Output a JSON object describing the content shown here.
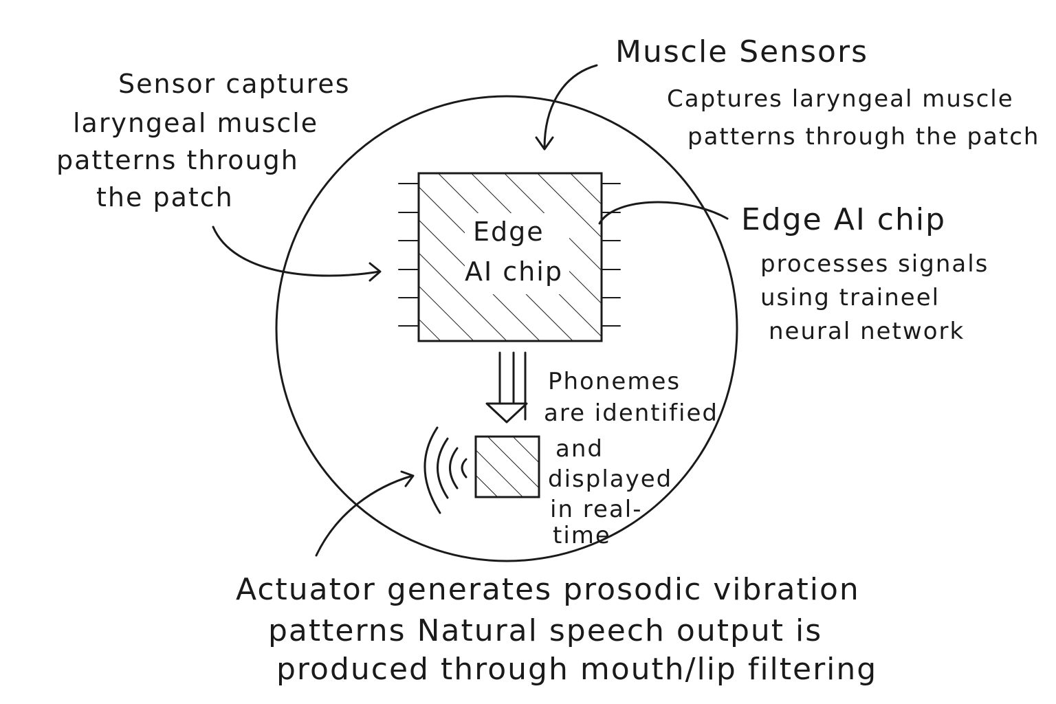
{
  "labels": {
    "muscle_sensors_title": "Muscle Sensors",
    "muscle_sensors_desc": [
      "Captures laryngeal muscle",
      "patterns through the patch"
    ],
    "sensor_captures": [
      "Sensor captures",
      "laryngeal muscle",
      "patterns through",
      "the patch"
    ],
    "chip_inner": [
      "Edge",
      "AI chip"
    ],
    "edge_ai_title": "Edge AI chip",
    "edge_ai_desc": [
      "processes signals",
      "using traineel",
      "neural network"
    ],
    "phonemes": [
      "Phonemes",
      "are identified"
    ],
    "displayed": [
      "and",
      "displayed",
      "in real-",
      "time"
    ],
    "actuator": [
      "Actuator generates prosodic vibration",
      "patterns Natural speech output is",
      "produced through mouth/lip filtering"
    ]
  },
  "colors": {
    "ink": "#1a1a1a",
    "background": "#ffffff"
  }
}
